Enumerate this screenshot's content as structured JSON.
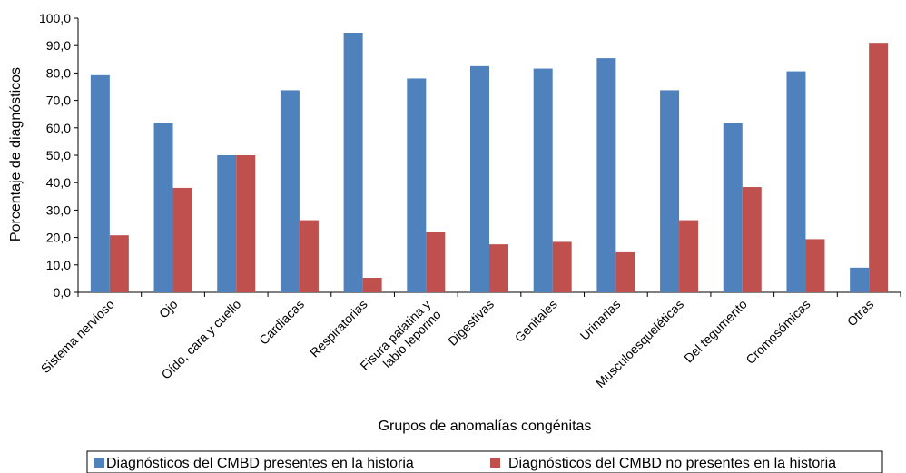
{
  "chart_data": {
    "type": "bar",
    "title": "",
    "xlabel": "Grupos de anomalías congénitas",
    "ylabel": "Porcentaje de diagnósticos",
    "ylim": [
      0,
      100
    ],
    "yticks": [
      "0,0",
      "10,0",
      "20,0",
      "30,0",
      "40,0",
      "50,0",
      "60,0",
      "70,0",
      "80,0",
      "90,0",
      "100,0"
    ],
    "grid": false,
    "legend_position": "bottom",
    "categories": [
      "Sistema nervioso",
      "Ojo",
      "Oído, cara y cuello",
      "Cardiacas",
      "Respiratorias",
      "Fisura palatina y labio leporino",
      "Digestivas",
      "Genitales",
      "Urinarias",
      "Musculoesqueléticas",
      "Del tegumento",
      "Cromosómicas",
      "Otras"
    ],
    "series": [
      {
        "name": "Diagnósticos del CMBD presentes en la historia",
        "color": "#4F81BD",
        "values": [
          79.2,
          61.9,
          50.0,
          73.7,
          94.7,
          78.0,
          82.5,
          81.6,
          85.4,
          73.7,
          61.6,
          80.6,
          9.0
        ]
      },
      {
        "name": "Diagnósticos del CMBD no presentes en la historia",
        "color": "#C0504D",
        "values": [
          20.8,
          38.1,
          50.0,
          26.3,
          5.3,
          22.0,
          17.5,
          18.4,
          14.6,
          26.3,
          38.4,
          19.4,
          91.0
        ]
      }
    ]
  }
}
